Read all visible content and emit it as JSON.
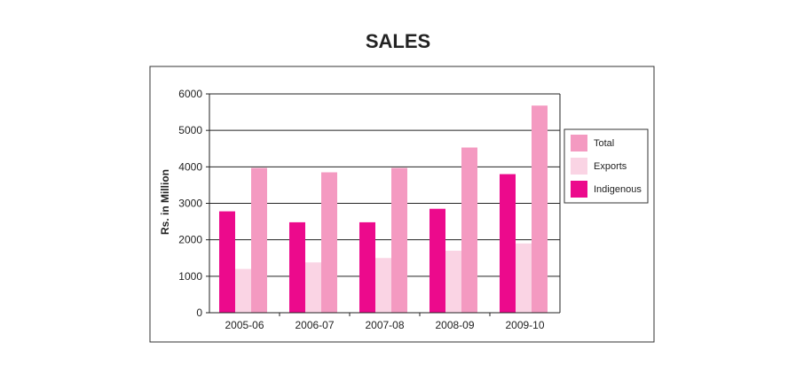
{
  "colors": {
    "total": "#f49ac1",
    "exports": "#fad4e4",
    "indigenous": "#ec0a8c",
    "frame": "#333333",
    "grid": "#222222"
  },
  "chart_data": {
    "type": "bar",
    "title": "SALES",
    "xlabel": "",
    "ylabel": "Rs. in Million",
    "ylim": [
      0,
      6000
    ],
    "yticks": [
      0,
      1000,
      2000,
      3000,
      4000,
      5000,
      6000
    ],
    "grid": true,
    "legend_position": "right",
    "categories": [
      "2005-06",
      "2006-07",
      "2007-08",
      "2008-09",
      "2009-10"
    ],
    "series": [
      {
        "name": "Indigenous",
        "color_key": "indigenous",
        "values": [
          2780,
          2480,
          2480,
          2850,
          3800
        ]
      },
      {
        "name": "Exports",
        "color_key": "exports",
        "values": [
          1200,
          1380,
          1500,
          1700,
          1900
        ]
      },
      {
        "name": "Total",
        "color_key": "total",
        "values": [
          3970,
          3850,
          3970,
          4530,
          5680
        ]
      }
    ],
    "legend_order": [
      "Total",
      "Exports",
      "Indigenous"
    ]
  }
}
